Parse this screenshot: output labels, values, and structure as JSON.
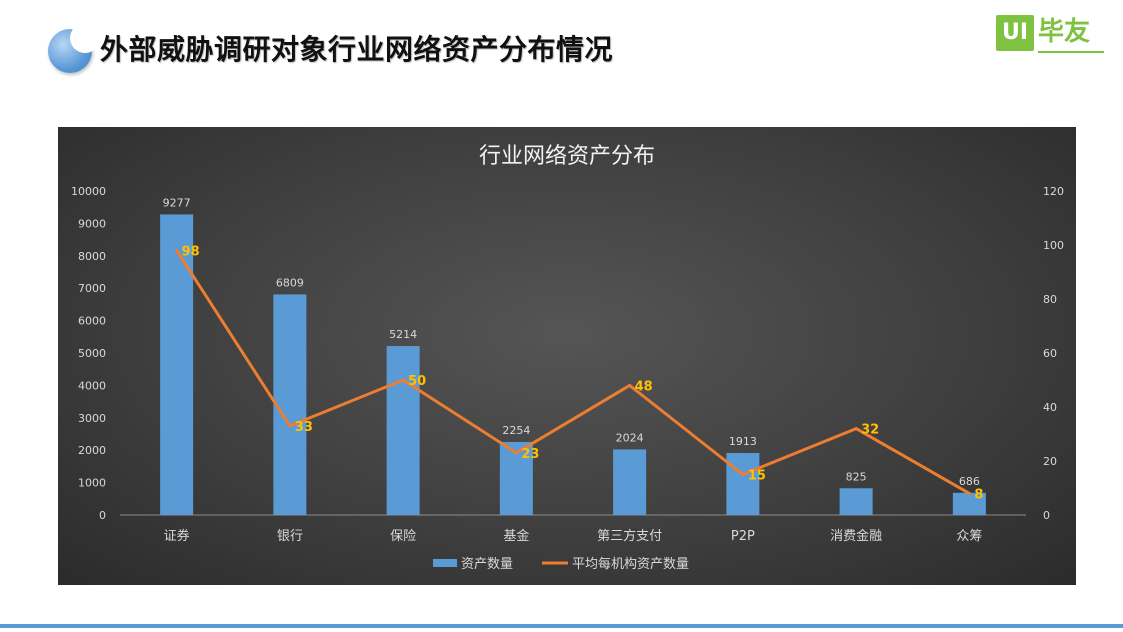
{
  "page": {
    "title": "外部威胁调研对象行业网络资产分布情况",
    "logo": {
      "badge": "UI",
      "text": "毕友"
    }
  },
  "colors": {
    "bar": "#5b9bd5",
    "line": "#ed7d31",
    "line_label": "#ffc000",
    "bar_label": "#d9d9d9",
    "axis_text": "#d9d9d9",
    "panel_bg": "#404040"
  },
  "chart_data": {
    "type": "bar",
    "title": "行业网络资产分布",
    "categories": [
      "证券",
      "银行",
      "保险",
      "基金",
      "第三方支付",
      "P2P",
      "消费金融",
      "众筹"
    ],
    "series": [
      {
        "name": "资产数量",
        "type": "bar",
        "axis": "left",
        "values": [
          9277,
          6809,
          5214,
          2254,
          2024,
          1913,
          825,
          686
        ]
      },
      {
        "name": "平均每机构资产数量",
        "type": "line",
        "axis": "right",
        "values": [
          98,
          33,
          50,
          23,
          48,
          15,
          32,
          8
        ]
      }
    ],
    "y_left": {
      "min": 0,
      "max": 10000,
      "step": 1000,
      "ticks": [
        "0",
        "1000",
        "2000",
        "3000",
        "4000",
        "5000",
        "6000",
        "7000",
        "8000",
        "9000",
        "10000"
      ]
    },
    "y_right": {
      "min": 0,
      "max": 120,
      "step": 20,
      "ticks": [
        "0",
        "20",
        "40",
        "60",
        "80",
        "100",
        "120"
      ]
    },
    "legend_position": "bottom",
    "grid": false
  }
}
